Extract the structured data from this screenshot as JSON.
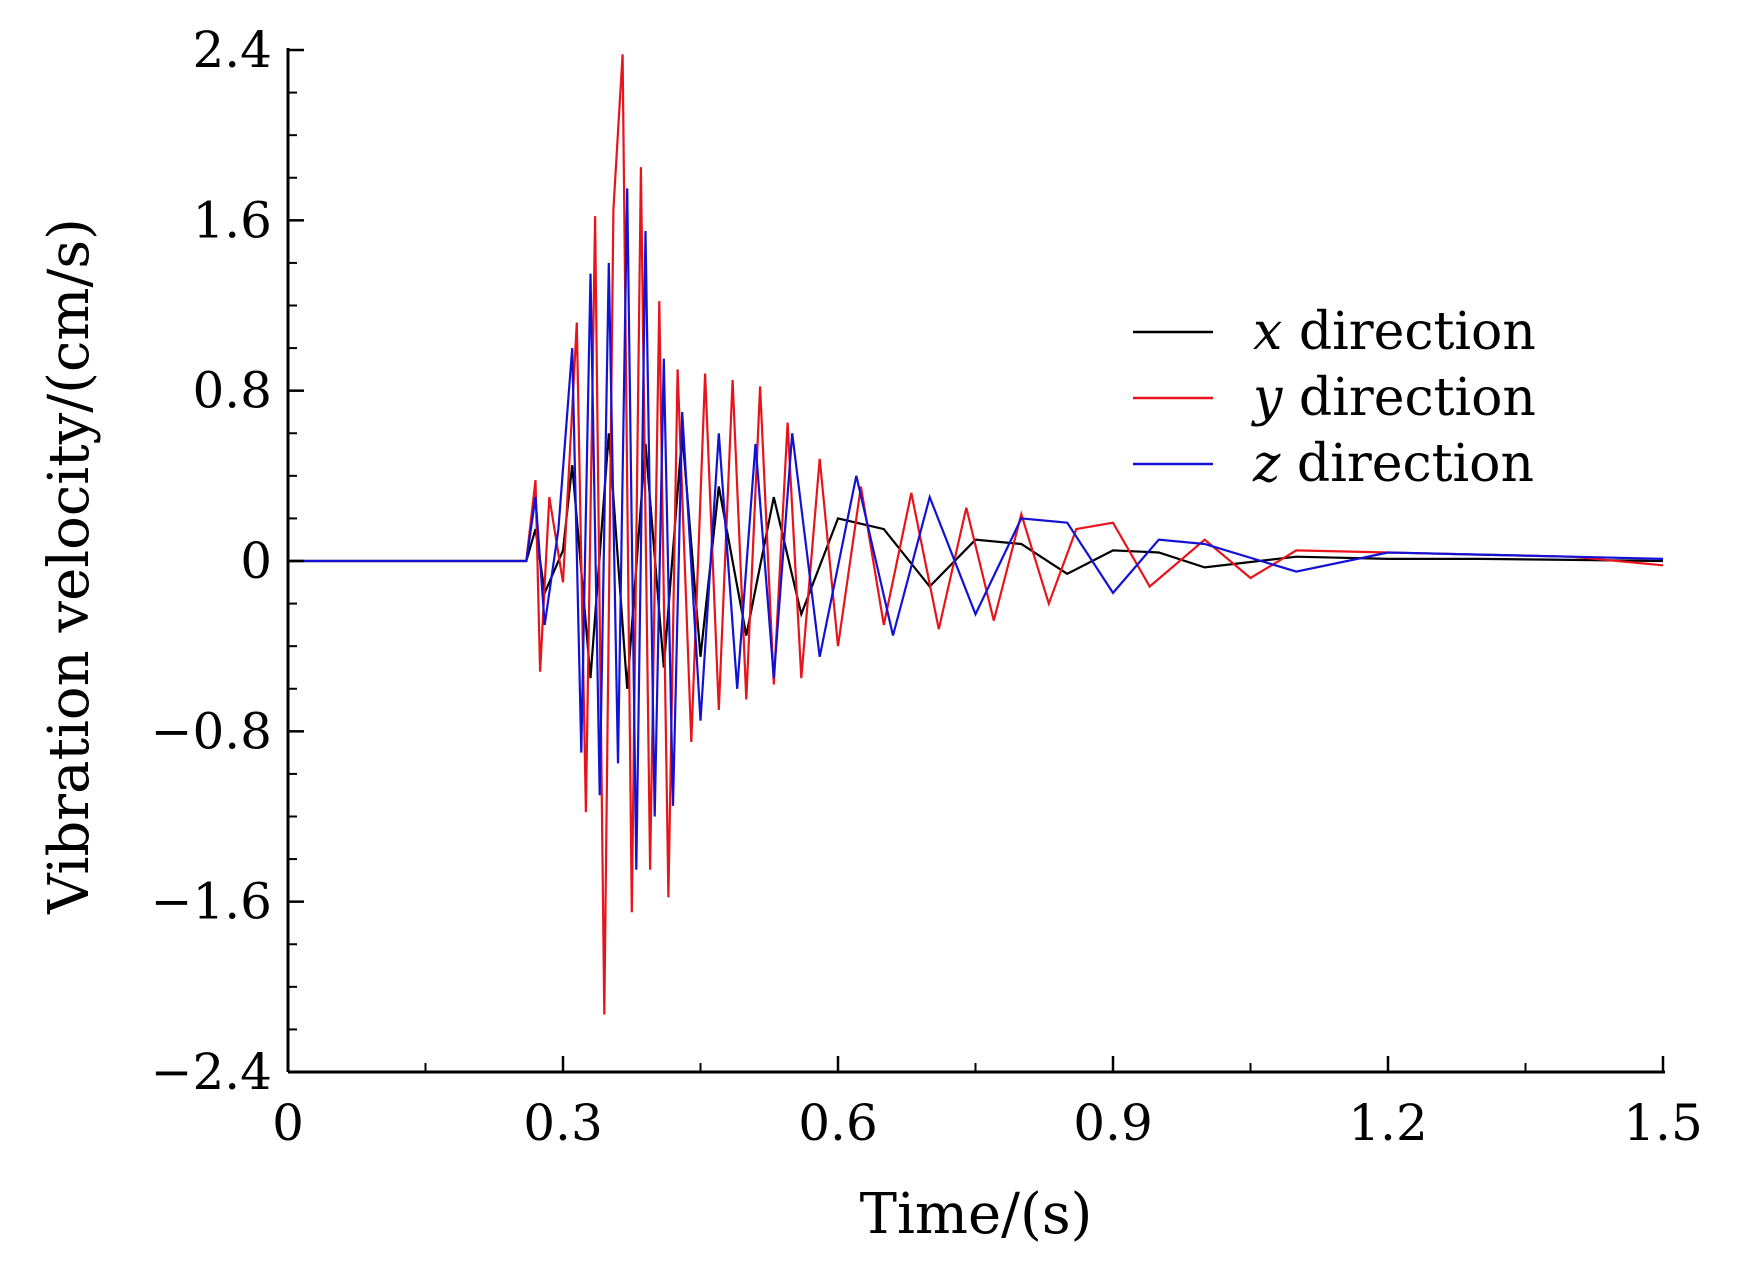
{
  "chart_data": {
    "type": "line",
    "title": "",
    "xlabel": "Time/(s)",
    "ylabel": "Vibration velocity/(cm/s)",
    "xlim": [
      0,
      1.5
    ],
    "ylim": [
      -2.4,
      2.4
    ],
    "xticks": [
      0,
      0.3,
      0.6,
      0.9,
      1.2,
      1.5
    ],
    "xtick_labels": [
      "0",
      "0.3",
      "0.6",
      "0.9",
      "1.2",
      "1.5"
    ],
    "yticks": [
      2.4,
      1.6,
      0.8,
      0,
      -0.8,
      -1.6,
      -2.4
    ],
    "ytick_labels": [
      "2.4",
      "1.6",
      "0.8",
      "0",
      "−0.8",
      "−1.6",
      "−2.4"
    ],
    "grid": false,
    "legend_position": "upper-right",
    "colors": {
      "x": "#000000",
      "y": "#e8141c",
      "z": "#1212d6"
    },
    "series": [
      {
        "name": "x direction",
        "var": "x",
        "text": " direction",
        "color": "#000000",
        "x": [
          0,
          0.26,
          0.27,
          0.28,
          0.3,
          0.31,
          0.33,
          0.35,
          0.37,
          0.39,
          0.41,
          0.43,
          0.45,
          0.47,
          0.5,
          0.53,
          0.56,
          0.6,
          0.65,
          0.7,
          0.75,
          0.8,
          0.85,
          0.9,
          0.95,
          1.0,
          1.1,
          1.2,
          1.3,
          1.4,
          1.5
        ],
        "values": [
          0,
          0,
          0.15,
          -0.15,
          0.05,
          0.45,
          -0.55,
          0.6,
          -0.6,
          0.55,
          -0.5,
          0.6,
          -0.45,
          0.35,
          -0.35,
          0.3,
          -0.25,
          0.2,
          0.15,
          -0.12,
          0.1,
          0.08,
          -0.06,
          0.05,
          0.04,
          -0.03,
          0.02,
          0.01,
          0.01,
          0.005,
          0
        ]
      },
      {
        "name": "y direction",
        "var": "y",
        "text": " direction",
        "color": "#e8141c",
        "x": [
          0,
          0.26,
          0.27,
          0.275,
          0.285,
          0.3,
          0.315,
          0.325,
          0.335,
          0.345,
          0.355,
          0.365,
          0.375,
          0.385,
          0.395,
          0.405,
          0.415,
          0.425,
          0.44,
          0.455,
          0.47,
          0.485,
          0.5,
          0.515,
          0.53,
          0.545,
          0.56,
          0.58,
          0.6,
          0.625,
          0.65,
          0.68,
          0.71,
          0.74,
          0.77,
          0.8,
          0.83,
          0.86,
          0.9,
          0.94,
          1.0,
          1.05,
          1.1,
          1.2,
          1.3,
          1.4,
          1.5
        ],
        "values": [
          0,
          0,
          0.38,
          -0.52,
          0.3,
          -0.1,
          1.12,
          -1.18,
          1.62,
          -2.13,
          1.65,
          2.38,
          -1.65,
          1.85,
          -1.45,
          1.22,
          -1.58,
          0.9,
          -0.85,
          0.88,
          -0.7,
          0.85,
          -0.65,
          0.82,
          -0.58,
          0.65,
          -0.55,
          0.48,
          -0.4,
          0.35,
          -0.3,
          0.32,
          -0.32,
          0.25,
          -0.28,
          0.22,
          -0.2,
          0.15,
          0.18,
          -0.12,
          0.1,
          -0.08,
          0.05,
          0.04,
          0.03,
          0.02,
          -0.02
        ]
      },
      {
        "name": "z direction",
        "var": "z",
        "text": " direction",
        "color": "#1212d6",
        "x": [
          0,
          0.26,
          0.27,
          0.28,
          0.295,
          0.31,
          0.32,
          0.33,
          0.34,
          0.35,
          0.36,
          0.37,
          0.38,
          0.39,
          0.4,
          0.41,
          0.42,
          0.43,
          0.45,
          0.47,
          0.49,
          0.51,
          0.53,
          0.55,
          0.58,
          0.62,
          0.66,
          0.7,
          0.75,
          0.8,
          0.85,
          0.9,
          0.95,
          1.0,
          1.1,
          1.2,
          1.3,
          1.4,
          1.5
        ],
        "values": [
          0,
          0,
          0.3,
          -0.3,
          0.15,
          1.0,
          -0.9,
          1.35,
          -1.1,
          1.4,
          -0.95,
          1.75,
          -1.45,
          1.55,
          -1.2,
          0.95,
          -1.15,
          0.7,
          -0.75,
          0.6,
          -0.6,
          0.55,
          -0.55,
          0.6,
          -0.45,
          0.4,
          -0.35,
          0.3,
          -0.25,
          0.2,
          0.18,
          -0.15,
          0.1,
          0.08,
          -0.05,
          0.04,
          0.03,
          0.02,
          0.01
        ]
      }
    ]
  }
}
